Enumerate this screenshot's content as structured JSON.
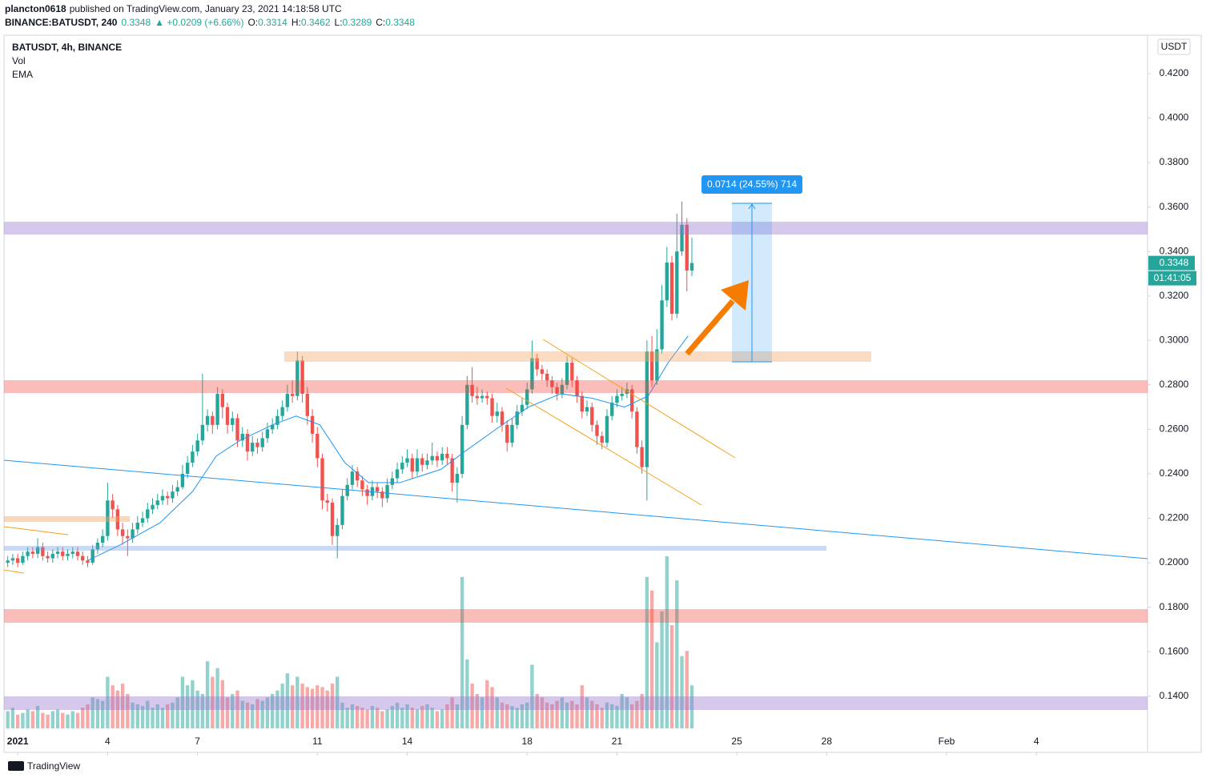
{
  "header": {
    "author": "plancton0618",
    "published": "published on TradingView.com, January 23, 2021 14:18:58 UTC",
    "symbol": "BINANCE:BATUSDT, 240",
    "change": "▲ +0.0209 (+6.66%)",
    "ohlc_labels": [
      "O:",
      "H:",
      "L:",
      "C:"
    ]
  },
  "chart_data": {
    "type": "candlestick",
    "legend_title": "BATUSDT, 4h, BINANCE",
    "currency": "USDT",
    "countdown": "01:41:05",
    "measure_label": "0.0714 (24.55%) 714",
    "logo": "TradingView",
    "up_color": "#26a69a",
    "down_color": "#ef5350",
    "grid": false,
    "xlim": [
      -11,
      905
    ],
    "ylim": [
      0.1147,
      0.4369
    ],
    "xticks": [
      {
        "value": 0,
        "label": "2021"
      },
      {
        "value": 72,
        "label": "4"
      },
      {
        "value": 144,
        "label": "7"
      },
      {
        "value": 240,
        "label": "11"
      },
      {
        "value": 312,
        "label": "14"
      },
      {
        "value": 408,
        "label": "18"
      },
      {
        "value": 480,
        "label": "21"
      },
      {
        "value": 576,
        "label": "25"
      },
      {
        "value": 648,
        "label": "28"
      },
      {
        "value": 744,
        "label": "Feb"
      },
      {
        "value": 816,
        "label": "4"
      }
    ],
    "yticks": [
      {
        "value": 0.14,
        "label": "0.1400"
      },
      {
        "value": 0.16,
        "label": "0.1600"
      },
      {
        "value": 0.18,
        "label": "0.1800"
      },
      {
        "value": 0.2,
        "label": "0.2000"
      },
      {
        "value": 0.22,
        "label": "0.2200"
      },
      {
        "value": 0.24,
        "label": "0.2400"
      },
      {
        "value": 0.26,
        "label": "0.2600"
      },
      {
        "value": 0.28,
        "label": "0.2800"
      },
      {
        "value": 0.3,
        "label": "0.3000"
      },
      {
        "value": 0.32,
        "label": "0.3200"
      },
      {
        "value": 0.34,
        "label": "0.3400"
      },
      {
        "value": 0.36,
        "label": "0.3600"
      },
      {
        "value": 0.38,
        "label": "0.3800"
      },
      {
        "value": 0.4,
        "label": "0.4000"
      },
      {
        "value": 0.42,
        "label": "0.4200"
      }
    ],
    "x": [
      -8,
      -4,
      0,
      4,
      8,
      12,
      16,
      20,
      24,
      28,
      32,
      36,
      40,
      44,
      48,
      52,
      56,
      60,
      64,
      68,
      72,
      76,
      80,
      84,
      88,
      92,
      96,
      100,
      104,
      108,
      112,
      116,
      120,
      124,
      128,
      132,
      136,
      140,
      144,
      148,
      152,
      156,
      160,
      164,
      168,
      172,
      176,
      180,
      184,
      188,
      192,
      196,
      200,
      204,
      208,
      212,
      216,
      220,
      224,
      228,
      232,
      236,
      240,
      244,
      248,
      252,
      256,
      260,
      264,
      268,
      272,
      276,
      280,
      284,
      288,
      292,
      296,
      300,
      304,
      308,
      312,
      316,
      320,
      324,
      328,
      332,
      336,
      340,
      344,
      348,
      352,
      356,
      360,
      364,
      368,
      372,
      376,
      380,
      384,
      388,
      392,
      396,
      400,
      404,
      408,
      412,
      416,
      420,
      424,
      428,
      432,
      436,
      440,
      444,
      448,
      452,
      456,
      460,
      464,
      468,
      472,
      476,
      480,
      484,
      488,
      492,
      496,
      500,
      504,
      508,
      512,
      516,
      520,
      524,
      528,
      532,
      536,
      540
    ],
    "ohlc": [
      [
        0.2,
        0.203,
        0.198,
        0.201
      ],
      [
        0.201,
        0.204,
        0.199,
        0.202
      ],
      [
        0.202,
        0.204,
        0.198,
        0.2
      ],
      [
        0.2,
        0.205,
        0.199,
        0.203
      ],
      [
        0.203,
        0.207,
        0.201,
        0.205
      ],
      [
        0.205,
        0.207,
        0.202,
        0.204
      ],
      [
        0.204,
        0.211,
        0.202,
        0.207
      ],
      [
        0.207,
        0.209,
        0.201,
        0.203
      ],
      [
        0.203,
        0.205,
        0.2,
        0.202
      ],
      [
        0.202,
        0.206,
        0.2,
        0.204
      ],
      [
        0.204,
        0.207,
        0.202,
        0.205
      ],
      [
        0.205,
        0.207,
        0.201,
        0.203
      ],
      [
        0.203,
        0.206,
        0.201,
        0.204
      ],
      [
        0.204,
        0.207,
        0.202,
        0.205
      ],
      [
        0.205,
        0.207,
        0.201,
        0.203
      ],
      [
        0.203,
        0.205,
        0.199,
        0.201
      ],
      [
        0.201,
        0.203,
        0.198,
        0.2
      ],
      [
        0.2,
        0.208,
        0.199,
        0.206
      ],
      [
        0.206,
        0.211,
        0.204,
        0.209
      ],
      [
        0.209,
        0.215,
        0.207,
        0.212
      ],
      [
        0.212,
        0.236,
        0.21,
        0.228
      ],
      [
        0.228,
        0.231,
        0.22,
        0.224
      ],
      [
        0.224,
        0.226,
        0.212,
        0.215
      ],
      [
        0.215,
        0.218,
        0.208,
        0.212
      ],
      [
        0.212,
        0.215,
        0.203,
        0.211
      ],
      [
        0.211,
        0.218,
        0.209,
        0.215
      ],
      [
        0.215,
        0.221,
        0.213,
        0.218
      ],
      [
        0.218,
        0.223,
        0.216,
        0.22
      ],
      [
        0.22,
        0.227,
        0.218,
        0.224
      ],
      [
        0.224,
        0.229,
        0.222,
        0.226
      ],
      [
        0.226,
        0.231,
        0.224,
        0.228
      ],
      [
        0.228,
        0.233,
        0.226,
        0.23
      ],
      [
        0.23,
        0.232,
        0.226,
        0.229
      ],
      [
        0.229,
        0.235,
        0.227,
        0.232
      ],
      [
        0.232,
        0.237,
        0.23,
        0.234
      ],
      [
        0.234,
        0.244,
        0.233,
        0.24
      ],
      [
        0.24,
        0.248,
        0.238,
        0.245
      ],
      [
        0.245,
        0.253,
        0.243,
        0.25
      ],
      [
        0.25,
        0.258,
        0.248,
        0.255
      ],
      [
        0.255,
        0.285,
        0.253,
        0.262
      ],
      [
        0.262,
        0.269,
        0.259,
        0.266
      ],
      [
        0.266,
        0.268,
        0.258,
        0.262
      ],
      [
        0.262,
        0.279,
        0.26,
        0.276
      ],
      [
        0.276,
        0.278,
        0.265,
        0.27
      ],
      [
        0.27,
        0.272,
        0.258,
        0.262
      ],
      [
        0.262,
        0.268,
        0.259,
        0.265
      ],
      [
        0.265,
        0.267,
        0.252,
        0.255
      ],
      [
        0.255,
        0.261,
        0.252,
        0.258
      ],
      [
        0.258,
        0.26,
        0.246,
        0.25
      ],
      [
        0.25,
        0.257,
        0.248,
        0.254
      ],
      [
        0.254,
        0.256,
        0.249,
        0.252
      ],
      [
        0.252,
        0.259,
        0.25,
        0.256
      ],
      [
        0.256,
        0.263,
        0.254,
        0.26
      ],
      [
        0.26,
        0.265,
        0.258,
        0.262
      ],
      [
        0.262,
        0.269,
        0.26,
        0.266
      ],
      [
        0.266,
        0.273,
        0.264,
        0.27
      ],
      [
        0.27,
        0.28,
        0.268,
        0.276
      ],
      [
        0.276,
        0.282,
        0.272,
        0.275
      ],
      [
        0.275,
        0.295,
        0.273,
        0.291
      ],
      [
        0.291,
        0.293,
        0.272,
        0.276
      ],
      [
        0.276,
        0.279,
        0.262,
        0.266
      ],
      [
        0.266,
        0.269,
        0.254,
        0.258
      ],
      [
        0.258,
        0.261,
        0.243,
        0.247
      ],
      [
        0.247,
        0.249,
        0.224,
        0.228
      ],
      [
        0.228,
        0.231,
        0.223,
        0.227
      ],
      [
        0.227,
        0.229,
        0.208,
        0.212
      ],
      [
        0.212,
        0.22,
        0.202,
        0.217
      ],
      [
        0.217,
        0.233,
        0.215,
        0.23
      ],
      [
        0.23,
        0.238,
        0.228,
        0.235
      ],
      [
        0.235,
        0.244,
        0.233,
        0.241
      ],
      [
        0.241,
        0.243,
        0.234,
        0.237
      ],
      [
        0.237,
        0.239,
        0.23,
        0.233
      ],
      [
        0.233,
        0.235,
        0.226,
        0.23
      ],
      [
        0.23,
        0.237,
        0.228,
        0.234
      ],
      [
        0.234,
        0.236,
        0.229,
        0.232
      ],
      [
        0.232,
        0.234,
        0.225,
        0.229
      ],
      [
        0.229,
        0.238,
        0.227,
        0.235
      ],
      [
        0.235,
        0.241,
        0.233,
        0.238
      ],
      [
        0.238,
        0.245,
        0.236,
        0.242
      ],
      [
        0.242,
        0.248,
        0.24,
        0.245
      ],
      [
        0.245,
        0.251,
        0.243,
        0.247
      ],
      [
        0.247,
        0.249,
        0.238,
        0.241
      ],
      [
        0.241,
        0.251,
        0.239,
        0.247
      ],
      [
        0.247,
        0.249,
        0.241,
        0.244
      ],
      [
        0.244,
        0.249,
        0.242,
        0.246
      ],
      [
        0.246,
        0.254,
        0.244,
        0.248
      ],
      [
        0.248,
        0.25,
        0.243,
        0.246
      ],
      [
        0.246,
        0.252,
        0.244,
        0.249
      ],
      [
        0.249,
        0.252,
        0.244,
        0.247
      ],
      [
        0.247,
        0.249,
        0.232,
        0.236
      ],
      [
        0.236,
        0.243,
        0.227,
        0.24
      ],
      [
        0.24,
        0.266,
        0.238,
        0.262
      ],
      [
        0.262,
        0.284,
        0.26,
        0.28
      ],
      [
        0.28,
        0.288,
        0.272,
        0.275
      ],
      [
        0.275,
        0.279,
        0.271,
        0.274
      ],
      [
        0.274,
        0.278,
        0.272,
        0.275
      ],
      [
        0.275,
        0.277,
        0.271,
        0.274
      ],
      [
        0.274,
        0.276,
        0.263,
        0.266
      ],
      [
        0.266,
        0.272,
        0.263,
        0.268
      ],
      [
        0.268,
        0.27,
        0.259,
        0.262
      ],
      [
        0.262,
        0.264,
        0.25,
        0.254
      ],
      [
        0.254,
        0.265,
        0.252,
        0.262
      ],
      [
        0.262,
        0.271,
        0.26,
        0.268
      ],
      [
        0.268,
        0.274,
        0.266,
        0.271
      ],
      [
        0.271,
        0.281,
        0.269,
        0.278
      ],
      [
        0.278,
        0.3,
        0.276,
        0.292
      ],
      [
        0.292,
        0.294,
        0.284,
        0.287
      ],
      [
        0.287,
        0.289,
        0.282,
        0.285
      ],
      [
        0.285,
        0.287,
        0.279,
        0.282
      ],
      [
        0.282,
        0.284,
        0.276,
        0.279
      ],
      [
        0.279,
        0.281,
        0.273,
        0.276
      ],
      [
        0.276,
        0.283,
        0.274,
        0.28
      ],
      [
        0.28,
        0.293,
        0.278,
        0.29
      ],
      [
        0.29,
        0.292,
        0.279,
        0.282
      ],
      [
        0.282,
        0.284,
        0.272,
        0.275
      ],
      [
        0.275,
        0.277,
        0.265,
        0.268
      ],
      [
        0.268,
        0.273,
        0.266,
        0.27
      ],
      [
        0.27,
        0.272,
        0.259,
        0.262
      ],
      [
        0.262,
        0.264,
        0.253,
        0.257
      ],
      [
        0.257,
        0.259,
        0.251,
        0.254
      ],
      [
        0.254,
        0.269,
        0.252,
        0.266
      ],
      [
        0.266,
        0.275,
        0.264,
        0.272
      ],
      [
        0.272,
        0.278,
        0.27,
        0.275
      ],
      [
        0.275,
        0.279,
        0.273,
        0.276
      ],
      [
        0.276,
        0.281,
        0.274,
        0.278
      ],
      [
        0.278,
        0.28,
        0.265,
        0.268
      ],
      [
        0.268,
        0.27,
        0.249,
        0.252
      ],
      [
        0.252,
        0.255,
        0.24,
        0.243
      ],
      [
        0.243,
        0.3,
        0.228,
        0.295
      ],
      [
        0.295,
        0.302,
        0.279,
        0.282
      ],
      [
        0.282,
        0.305,
        0.28,
        0.296
      ],
      [
        0.296,
        0.325,
        0.294,
        0.318
      ],
      [
        0.318,
        0.342,
        0.315,
        0.335
      ],
      [
        0.335,
        0.338,
        0.309,
        0.312
      ],
      [
        0.312,
        0.357,
        0.31,
        0.34
      ],
      [
        0.34,
        0.3625,
        0.338,
        0.352
      ],
      [
        0.352,
        0.355,
        0.322,
        0.3314
      ],
      [
        0.3314,
        0.3462,
        0.3289,
        0.3348
      ]
    ],
    "volume": {
      "name": "Vol",
      "values": [
        10,
        12,
        8,
        9,
        11,
        10,
        13,
        9,
        8,
        10,
        11,
        9,
        8,
        10,
        9,
        12,
        14,
        18,
        17,
        16,
        30,
        25,
        22,
        26,
        20,
        15,
        14,
        13,
        16,
        12,
        14,
        12,
        14,
        15,
        18,
        30,
        25,
        28,
        22,
        20,
        39,
        30,
        35,
        28,
        18,
        20,
        22,
        16,
        15,
        14,
        17,
        16,
        18,
        20,
        22,
        26,
        32,
        25,
        30,
        26,
        24,
        23,
        25,
        24,
        22,
        26,
        30,
        15,
        12,
        14,
        13,
        12,
        11,
        13,
        12,
        10,
        11,
        13,
        15,
        12,
        14,
        12,
        11,
        13,
        14,
        12,
        10,
        11,
        14,
        18,
        14,
        88,
        40,
        26,
        20,
        18,
        28,
        24,
        18,
        15,
        14,
        13,
        12,
        14,
        15,
        37,
        20,
        18,
        15,
        14,
        16,
        18,
        15,
        16,
        14,
        25,
        18,
        16,
        14,
        12,
        15,
        14,
        13,
        20,
        18,
        14,
        16,
        20,
        88,
        80,
        50,
        68,
        100,
        60,
        86,
        42,
        45,
        25
      ]
    },
    "ema": {
      "name": "EMA",
      "color": "#2196f3",
      "x": [
        56,
        82,
        114,
        140,
        159,
        178,
        204,
        223,
        242,
        262,
        281,
        306,
        339,
        358,
        383,
        409,
        435,
        460,
        486,
        505,
        521,
        537
      ],
      "values": [
        0.201,
        0.208,
        0.218,
        0.232,
        0.248,
        0.255,
        0.262,
        0.266,
        0.262,
        0.245,
        0.236,
        0.236,
        0.242,
        0.25,
        0.26,
        0.27,
        0.276,
        0.274,
        0.27,
        0.275,
        0.29,
        0.302
      ]
    }
  }
}
